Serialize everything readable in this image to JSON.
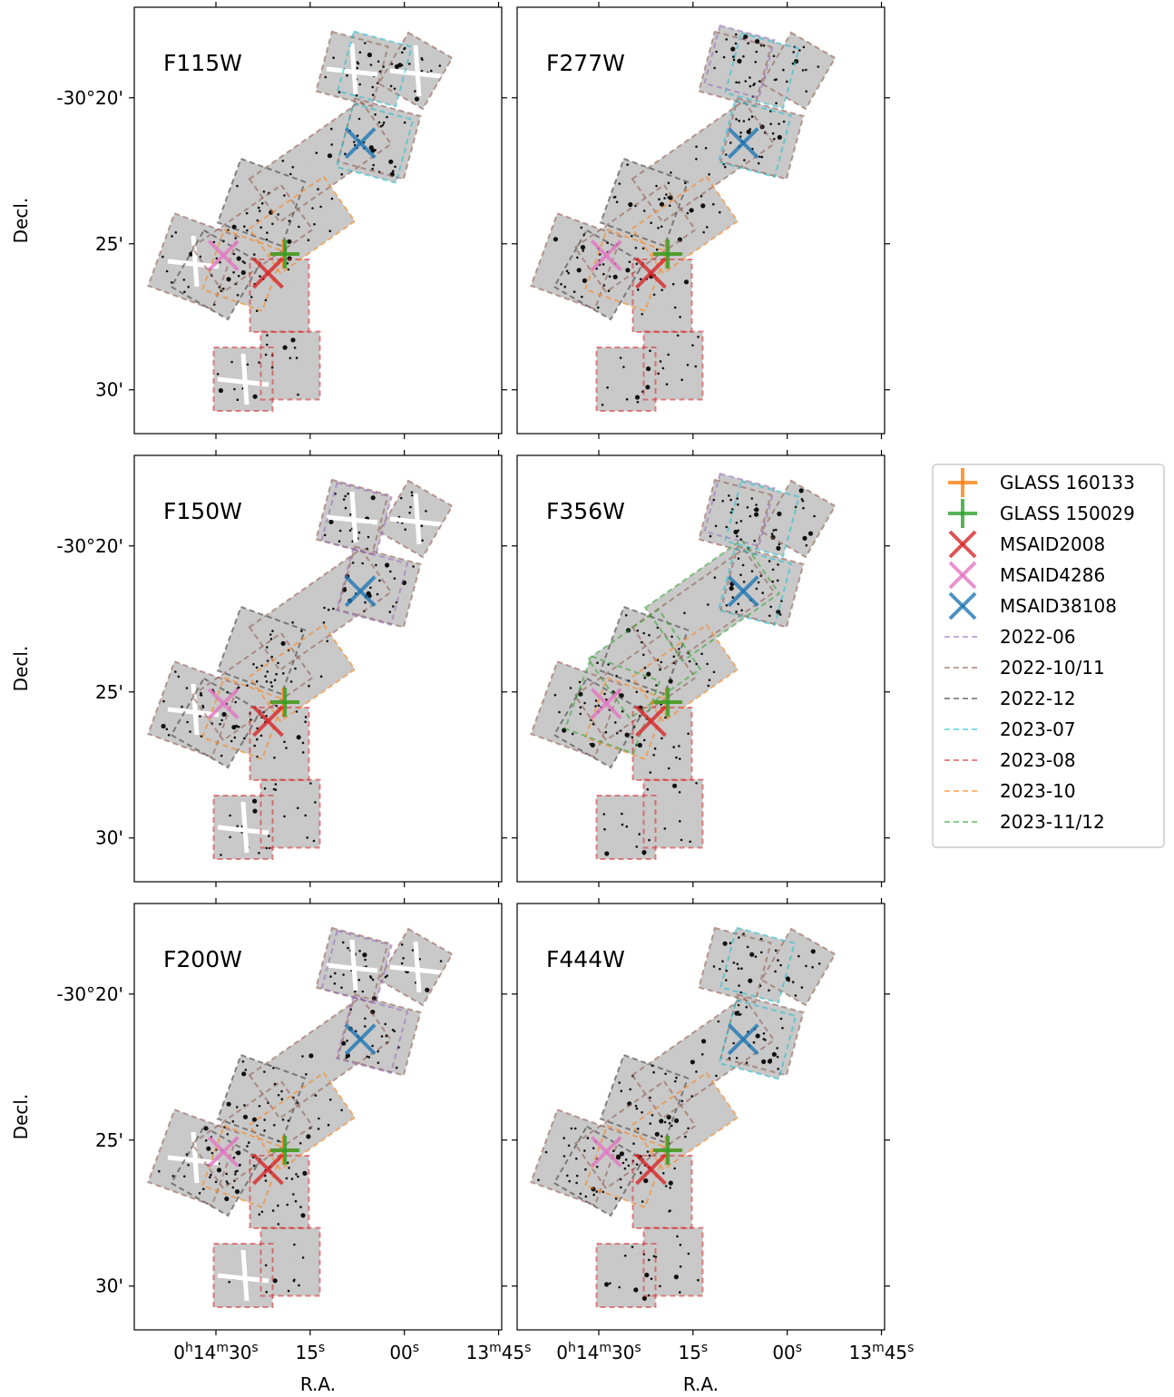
{
  "chart_data": {
    "type": "scatter",
    "title": "",
    "layout": "3x2 grid of sky-footprint panels sharing axes",
    "xlabel": "R.A.",
    "ylabel": "Decl.",
    "x_tick_labels": [
      {
        "main": "0",
        "sup1": "h",
        "mid": "14",
        "sup2": "m",
        "tail": "30",
        "sup3": "s"
      },
      {
        "main": "",
        "sup1": "",
        "mid": "",
        "sup2": "",
        "tail": "15",
        "sup3": "s"
      },
      {
        "main": "",
        "sup1": "",
        "mid": "",
        "sup2": "",
        "tail": "00",
        "sup3": "s"
      },
      {
        "main": "",
        "sup1": "",
        "mid": "13",
        "sup2": "m",
        "tail": "45",
        "sup3": "s"
      }
    ],
    "x_ticks_sec": [
      30,
      15,
      0,
      -15
    ],
    "xlim_sec": [
      43,
      -15.5
    ],
    "y_tick_labels": [
      "-30°20'",
      "25'",
      "30'"
    ],
    "y_ticks_arcmin": [
      -20,
      -25,
      -30
    ],
    "ylim_arcmin": [
      -31.5,
      -16.9
    ],
    "image_colormap": "inverted greyscale",
    "panels": [
      {
        "label": "F115W",
        "row": 0,
        "col": 0,
        "variant": "A"
      },
      {
        "label": "F277W",
        "row": 0,
        "col": 1,
        "variant": "B"
      },
      {
        "label": "F150W",
        "row": 1,
        "col": 0,
        "variant": "C"
      },
      {
        "label": "F356W",
        "row": 1,
        "col": 1,
        "variant": "D"
      },
      {
        "label": "F200W",
        "row": 2,
        "col": 0,
        "variant": "C"
      },
      {
        "label": "F444W",
        "row": 2,
        "col": 1,
        "variant": "E"
      }
    ],
    "sources": [
      {
        "name": "GLASS 160133",
        "marker": "plus",
        "color": "#ff7f0e",
        "ra_sec": 19.2,
        "dec_arcmin": -25.35
      },
      {
        "name": "GLASS 150029",
        "marker": "plus",
        "color": "#2ca02c",
        "ra_sec": 19.0,
        "dec_arcmin": -25.35
      },
      {
        "name": "MSAID2008",
        "marker": "x",
        "color": "#d62728",
        "ra_sec": 21.7,
        "dec_arcmin": -26.0
      },
      {
        "name": "MSAID4286",
        "marker": "x",
        "color": "#e377c2",
        "ra_sec": 28.8,
        "dec_arcmin": -25.4
      },
      {
        "name": "MSAID38108",
        "marker": "x",
        "color": "#1f77b4",
        "ra_sec": 7.0,
        "dec_arcmin": -21.55
      }
    ],
    "epochs": [
      {
        "name": "2022-06",
        "color": "#9467bd"
      },
      {
        "name": "2022-10/11",
        "color": "#8c564b"
      },
      {
        "name": "2022-12",
        "color": "#333333"
      },
      {
        "name": "2023-07",
        "color": "#17becf"
      },
      {
        "name": "2023-08",
        "color": "#d62728"
      },
      {
        "name": "2023-10",
        "color": "#ff7f0e"
      },
      {
        "name": "2023-11/12",
        "color": "#2ca02c"
      }
    ],
    "legend_position": "right of the middle row"
  }
}
